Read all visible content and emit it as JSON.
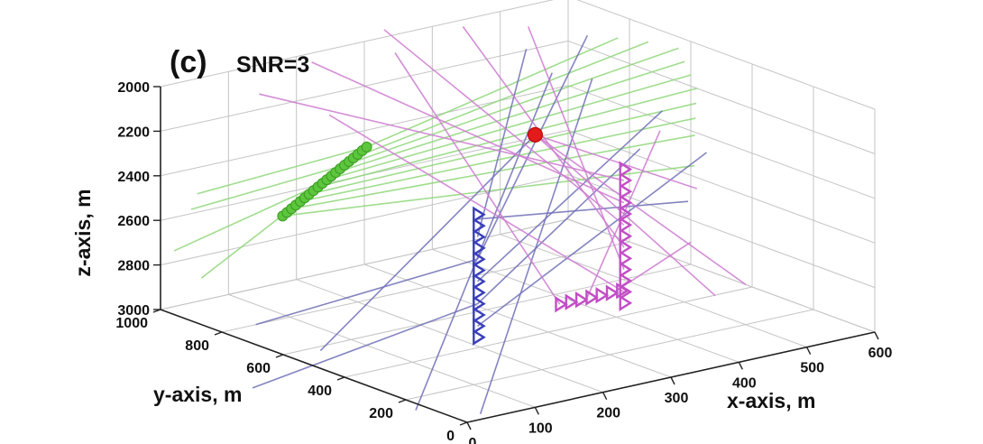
{
  "panel": {
    "letter": "(c)",
    "subtitle": "SNR=3"
  },
  "chart_data": {
    "type": "scatter3d",
    "xlabel": "x-axis, m",
    "ylabel": "y-axis, m",
    "zlabel": "z-axis, m",
    "xlim": [
      0,
      600
    ],
    "ylim": [
      0,
      1000
    ],
    "zlim": [
      2000,
      3000
    ],
    "z_reversed": true,
    "grid": true,
    "x_ticks": [
      "0",
      "100",
      "200",
      "300",
      "400",
      "500",
      "600"
    ],
    "y_ticks": [
      "0",
      "200",
      "400",
      "600",
      "800",
      "1000"
    ],
    "z_ticks": [
      "2000",
      "2200",
      "2400",
      "2600",
      "2800",
      "3000"
    ],
    "colors": {
      "green": "#5cc63c",
      "blue": "#3a3fb8",
      "magenta": "#c24ec6",
      "green_ray": "#8fd77a",
      "blue_ray": "#6f6fb6",
      "magenta_ray": "#cd7ad0",
      "event": "#e31b1b",
      "grid": "#c4c4c4"
    },
    "series": [
      {
        "marker": "circle",
        "color_key": "green",
        "points": [
          [
            112,
            850,
            2580
          ],
          [
            114,
            840,
            2560
          ],
          [
            116,
            830,
            2540
          ],
          [
            118,
            820,
            2520
          ],
          [
            120,
            810,
            2500
          ],
          [
            122,
            800,
            2480
          ],
          [
            124,
            790,
            2460
          ],
          [
            126,
            780,
            2440
          ],
          [
            128,
            770,
            2420
          ],
          [
            130,
            760,
            2400
          ],
          [
            132,
            750,
            2380
          ],
          [
            134,
            740,
            2360
          ],
          [
            136,
            730,
            2340
          ],
          [
            138,
            720,
            2320
          ],
          [
            140,
            710,
            2300
          ],
          [
            142,
            700,
            2280
          ],
          [
            144,
            690,
            2260
          ],
          [
            146,
            680,
            2240
          ],
          [
            148,
            670,
            2220
          ],
          [
            150,
            660,
            2200
          ]
        ]
      },
      {
        "marker": "triangle",
        "color_key": "blue",
        "points": [
          [
            250,
            520,
            2500
          ],
          [
            250,
            520,
            2550
          ],
          [
            250,
            520,
            2600
          ],
          [
            250,
            520,
            2650
          ],
          [
            250,
            520,
            2700
          ],
          [
            250,
            520,
            2750
          ],
          [
            250,
            520,
            2800
          ],
          [
            250,
            520,
            2850
          ],
          [
            250,
            520,
            2900
          ],
          [
            250,
            520,
            2950
          ],
          [
            250,
            520,
            3000
          ],
          [
            250,
            520,
            3050
          ]
        ]
      },
      {
        "marker": "triangle",
        "color_key": "magenta",
        "points": [
          [
            470,
            530,
            2450
          ],
          [
            470,
            530,
            2500
          ],
          [
            470,
            530,
            2550
          ],
          [
            470,
            530,
            2600
          ],
          [
            470,
            530,
            2650
          ],
          [
            470,
            530,
            2700
          ],
          [
            470,
            530,
            2750
          ],
          [
            470,
            530,
            2800
          ],
          [
            470,
            530,
            2850
          ],
          [
            470,
            530,
            2900
          ],
          [
            470,
            530,
            2950
          ],
          [
            470,
            530,
            3000
          ],
          [
            470,
            530,
            3050
          ]
        ]
      },
      {
        "marker": "triangle",
        "color_key": "magenta",
        "points": [
          [
            380,
            540,
            3000
          ],
          [
            395,
            540,
            3000
          ],
          [
            410,
            540,
            3000
          ],
          [
            425,
            540,
            3000
          ],
          [
            440,
            540,
            3000
          ],
          [
            455,
            540,
            3000
          ],
          [
            470,
            540,
            3000
          ]
        ]
      },
      {
        "marker": "circle",
        "color_key": "event",
        "points": [
          [
            380,
            620,
            2280
          ]
        ]
      }
    ],
    "rays": [
      {
        "color_key": "green_ray",
        "from": [
          112,
          850,
          2580
        ],
        "to": [
          560,
          500,
          2480
        ]
      },
      {
        "color_key": "green_ray",
        "from": [
          116,
          830,
          2540
        ],
        "to": [
          570,
          520,
          2360
        ]
      },
      {
        "color_key": "green_ray",
        "from": [
          120,
          810,
          2500
        ],
        "to": [
          580,
          540,
          2300
        ]
      },
      {
        "color_key": "green_ray",
        "from": [
          124,
          790,
          2460
        ],
        "to": [
          590,
          560,
          2250
        ]
      },
      {
        "color_key": "green_ray",
        "from": [
          128,
          770,
          2420
        ],
        "to": [
          600,
          580,
          2200
        ]
      },
      {
        "color_key": "green_ray",
        "from": [
          132,
          750,
          2380
        ],
        "to": [
          600,
          600,
          2150
        ]
      },
      {
        "color_key": "green_ray",
        "from": [
          136,
          730,
          2340
        ],
        "to": [
          600,
          620,
          2100
        ]
      },
      {
        "color_key": "green_ray",
        "from": [
          140,
          710,
          2300
        ],
        "to": [
          600,
          640,
          2050
        ]
      },
      {
        "color_key": "green_ray",
        "from": [
          144,
          690,
          2260
        ],
        "to": [
          560,
          650,
          2000
        ]
      },
      {
        "color_key": "green_ray",
        "from": [
          150,
          660,
          2200
        ],
        "to": [
          520,
          660,
          1960
        ]
      },
      {
        "color_key": "green_ray",
        "from": [
          0,
          880,
          2420
        ],
        "to": [
          150,
          660,
          2200
        ]
      },
      {
        "color_key": "green_ray",
        "from": [
          0,
          900,
          2500
        ],
        "to": [
          140,
          710,
          2300
        ]
      },
      {
        "color_key": "green_ray",
        "from": [
          20,
          1000,
          2750
        ],
        "to": [
          130,
          760,
          2400
        ]
      },
      {
        "color_key": "green_ray",
        "from": [
          60,
          1000,
          2900
        ],
        "to": [
          120,
          810,
          2500
        ]
      },
      {
        "color_key": "blue_ray",
        "from": [
          250,
          520,
          2520
        ],
        "to": [
          560,
          520,
          2650
        ]
      },
      {
        "color_key": "blue_ray",
        "from": [
          250,
          520,
          2600
        ],
        "to": [
          430,
          760,
          2000
        ]
      },
      {
        "color_key": "blue_ray",
        "from": [
          250,
          520,
          2700
        ],
        "to": [
          520,
          760,
          2000
        ]
      },
      {
        "color_key": "blue_ray",
        "from": [
          250,
          520,
          2800
        ],
        "to": [
          540,
          560,
          2250
        ]
      },
      {
        "color_key": "blue_ray",
        "from": [
          250,
          520,
          2900
        ],
        "to": [
          480,
          500,
          2350
        ]
      },
      {
        "color_key": "blue_ray",
        "from": [
          250,
          520,
          3000
        ],
        "to": [
          560,
          460,
          2400
        ]
      },
      {
        "color_key": "blue_ray",
        "from": [
          100,
          700,
          3100
        ],
        "to": [
          380,
          620,
          2280
        ]
      },
      {
        "color_key": "blue_ray",
        "from": [
          50,
          800,
          3000
        ],
        "to": [
          250,
          520,
          2700
        ]
      },
      {
        "color_key": "blue_ray",
        "from": [
          0,
          700,
          3200
        ],
        "to": [
          250,
          520,
          2900
        ]
      },
      {
        "color_key": "blue_ray",
        "from": [
          150,
          500,
          3300
        ],
        "to": [
          450,
          720,
          2100
        ]
      },
      {
        "color_key": "blue_ray",
        "from": [
          200,
          400,
          3300
        ],
        "to": [
          500,
          700,
          2150
        ]
      },
      {
        "color_key": "magenta_ray",
        "from": [
          470,
          530,
          2500
        ],
        "to": [
          100,
          900,
          2050
        ]
      },
      {
        "color_key": "magenta_ray",
        "from": [
          470,
          530,
          2600
        ],
        "to": [
          200,
          950,
          2000
        ]
      },
      {
        "color_key": "magenta_ray",
        "from": [
          470,
          530,
          2700
        ],
        "to": [
          320,
          980,
          1950
        ]
      },
      {
        "color_key": "magenta_ray",
        "from": [
          470,
          530,
          2800
        ],
        "to": [
          400,
          900,
          1950
        ]
      },
      {
        "color_key": "magenta_ray",
        "from": [
          470,
          530,
          2900
        ],
        "to": [
          460,
          820,
          1950
        ]
      },
      {
        "color_key": "magenta_ray",
        "from": [
          470,
          530,
          3000
        ],
        "to": [
          140,
          760,
          2100
        ]
      },
      {
        "color_key": "magenta_ray",
        "from": [
          380,
          540,
          3000
        ],
        "to": [
          300,
          900,
          2000
        ]
      },
      {
        "color_key": "magenta_ray",
        "from": [
          420,
          540,
          3000
        ],
        "to": [
          600,
          700,
          2450
        ]
      },
      {
        "color_key": "magenta_ray",
        "from": [
          460,
          540,
          3000
        ],
        "to": [
          600,
          600,
          2900
        ]
      },
      {
        "color_key": "magenta_ray",
        "from": [
          380,
          620,
          2280
        ],
        "to": [
          600,
          520,
          3100
        ]
      },
      {
        "color_key": "magenta_ray",
        "from": [
          380,
          620,
          2280
        ],
        "to": [
          600,
          420,
          3000
        ]
      },
      {
        "color_key": "magenta_ray",
        "from": [
          380,
          620,
          2280
        ],
        "to": [
          600,
          580,
          2650
        ]
      }
    ]
  }
}
